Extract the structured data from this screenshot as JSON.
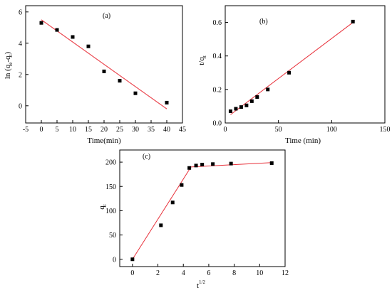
{
  "chart_data": [
    {
      "type": "scatter",
      "panel": "(a)",
      "xlabel": "Time(min)",
      "ylabel_main": "ln (q",
      "ylabel_parts": [
        "ln (q",
        "e",
        "-q",
        "t",
        ")"
      ],
      "xlim": [
        -5,
        45
      ],
      "ylim": [
        -1.1,
        6.4
      ],
      "xticks": [
        -5,
        0,
        5,
        10,
        15,
        20,
        25,
        30,
        35,
        40,
        45
      ],
      "yticks": [
        0,
        2,
        4,
        6
      ],
      "points": [
        [
          0,
          5.3
        ],
        [
          5,
          4.85
        ],
        [
          10,
          4.4
        ],
        [
          15,
          3.8
        ],
        [
          20,
          2.2
        ],
        [
          25,
          1.6
        ],
        [
          30,
          0.8
        ],
        [
          40,
          0.2
        ]
      ],
      "fit_line": [
        [
          0,
          5.5
        ],
        [
          40,
          -0.2
        ]
      ],
      "marker_color": "#000000",
      "line_color": "#e8303a"
    },
    {
      "type": "scatter",
      "panel": "(b)",
      "xlabel": "Time (min)",
      "ylabel_parts": [
        "t/q",
        "t"
      ],
      "xlim": [
        0,
        150
      ],
      "ylim": [
        0,
        0.7
      ],
      "xticks": [
        0,
        50,
        100,
        150
      ],
      "yticks": [
        0.0,
        0.2,
        0.4,
        0.6
      ],
      "ytick_labels": [
        "0.0",
        "0.2",
        "0.4",
        "0.6"
      ],
      "points": [
        [
          5,
          0.07
        ],
        [
          10,
          0.085
        ],
        [
          15,
          0.095
        ],
        [
          20,
          0.105
        ],
        [
          25,
          0.13
        ],
        [
          30,
          0.155
        ],
        [
          40,
          0.2
        ],
        [
          60,
          0.3
        ],
        [
          120,
          0.605
        ]
      ],
      "fit_line": [
        [
          5,
          0.05
        ],
        [
          120,
          0.6
        ]
      ],
      "marker_color": "#000000",
      "line_color": "#e8303a"
    },
    {
      "type": "scatter",
      "panel": "(c)",
      "xlabel_parts": [
        "t",
        "1/2"
      ],
      "ylabel_parts": [
        "q",
        "t"
      ],
      "xlim": [
        -1,
        12
      ],
      "ylim": [
        -15,
        225
      ],
      "xticks": [
        0,
        2,
        4,
        6,
        8,
        10,
        12
      ],
      "yticks": [
        0,
        50,
        100,
        150,
        200
      ],
      "points": [
        [
          0,
          0
        ],
        [
          2.24,
          70
        ],
        [
          3.16,
          117
        ],
        [
          3.87,
          153
        ],
        [
          4.47,
          188
        ],
        [
          5,
          193
        ],
        [
          5.48,
          195
        ],
        [
          6.32,
          196
        ],
        [
          7.75,
          197
        ],
        [
          10.95,
          198
        ]
      ],
      "fit_segments": [
        [
          [
            0,
            0
          ],
          [
            4.6,
            190
          ]
        ],
        [
          [
            4.6,
            190
          ],
          [
            10.95,
            199
          ]
        ]
      ],
      "marker_color": "#000000",
      "line_color": "#e8303a"
    }
  ]
}
